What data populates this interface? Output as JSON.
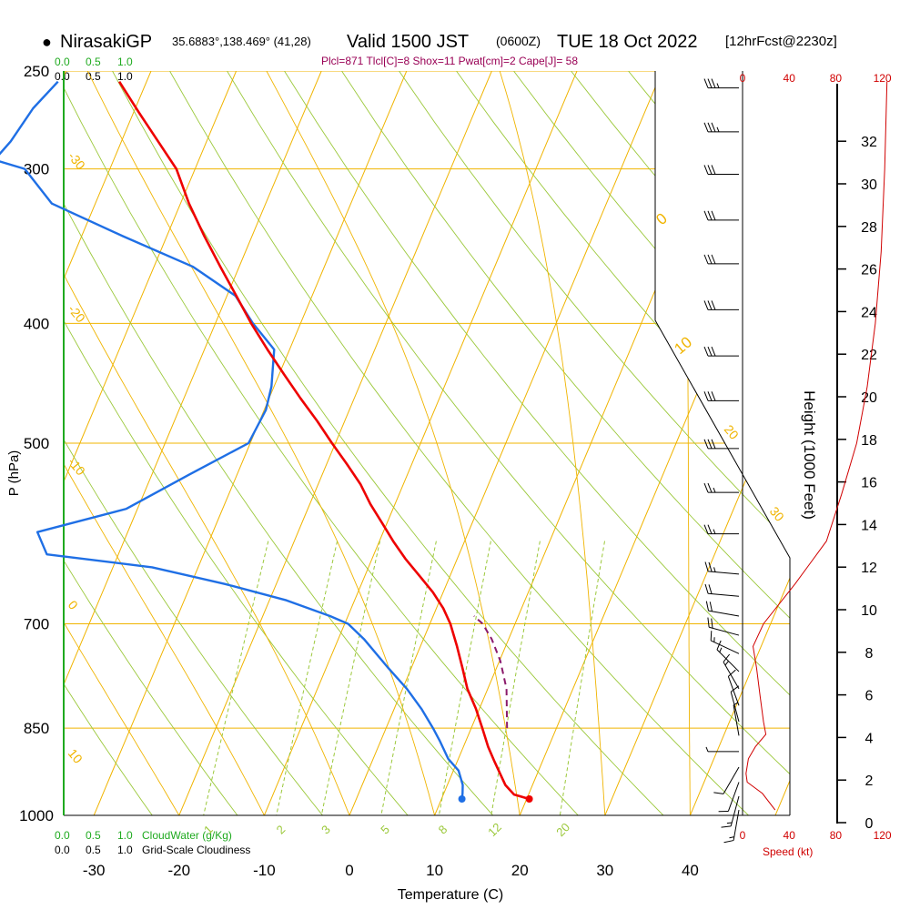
{
  "header": {
    "bullet": "●",
    "station": "NirasakiGP",
    "coords": "35.6883°,138.469° (41,28)",
    "valid": "Valid 1500 JST",
    "utc": "(0600Z)",
    "date": "TUE 18 Oct 2022",
    "forecast": "[12hrFcst@2230z]",
    "indices": "Plcl=871 Tlcl[C]=8 Shox=11 Pwat[cm]=2 Cape[J]= 58"
  },
  "labels": {
    "cloudwater_scale": [
      "0.0",
      "0.5",
      "1.0"
    ],
    "cloudiness_scale": [
      "0.0",
      "0.5",
      "1.0"
    ],
    "cloudwater_title": "CloudWater (g/Kg)",
    "cloudiness_title": "Grid-Scale Cloudiness",
    "speed_title": "Speed (kt)"
  },
  "colors": {
    "temperature": "#ee0000",
    "dewpoint": "#1f6fe5",
    "parcel": "#8b1a6b",
    "isotherm": "#f0b400",
    "isobar": "#f0b400",
    "mixing_ratio": "#9bc83a",
    "dry_adiabat": "#9bc83a",
    "moist_adiabat": "#f0b400",
    "cloudwater": "#1faa1f",
    "wind_speed": "#d00000",
    "indices": "#990055"
  },
  "chart_data": {
    "type": "skewt",
    "title": "NirasakiGP 35.6883°,138.469° (41,28) Valid 1500 JST (0600Z) TUE 18 Oct 2022 [12hrFcst@2230z]",
    "xlabel": "Temperature (C)",
    "ylabel": "P (hPa)",
    "y2label": "Height (1000 Feet)",
    "pressure_ticks": [
      250,
      300,
      400,
      500,
      700,
      850,
      1000
    ],
    "temperature_ticks": [
      -30,
      -20,
      -10,
      0,
      10,
      20,
      30,
      40
    ],
    "height_ticks": [
      0,
      2,
      4,
      6,
      8,
      10,
      12,
      14,
      16,
      18,
      20,
      22,
      24,
      26,
      28,
      30,
      32
    ],
    "speed_ticks": [
      0,
      40,
      80,
      120
    ],
    "skewed_isotherm_labels": [
      -30,
      -20,
      -10,
      0,
      10,
      20,
      30
    ],
    "mixing_ratio_labels": [
      1,
      2,
      3,
      5,
      8,
      12,
      20
    ],
    "indices": {
      "Plcl": 871,
      "Tlcl_C": 8,
      "Shox": 11,
      "Pwat_cm": 2,
      "Cape_J": 58
    },
    "temperature_profile": [
      {
        "p": 970,
        "t": 20.3
      },
      {
        "p": 962,
        "t": 18.3
      },
      {
        "p": 945,
        "t": 16.8
      },
      {
        "p": 905,
        "t": 14.4
      },
      {
        "p": 880,
        "t": 12.9
      },
      {
        "p": 850,
        "t": 11.3
      },
      {
        "p": 820,
        "t": 9.6
      },
      {
        "p": 790,
        "t": 7.6
      },
      {
        "p": 760,
        "t": 6.0
      },
      {
        "p": 730,
        "t": 4.3
      },
      {
        "p": 700,
        "t": 2.4
      },
      {
        "p": 680,
        "t": 0.8
      },
      {
        "p": 660,
        "t": -1.2
      },
      {
        "p": 640,
        "t": -3.6
      },
      {
        "p": 620,
        "t": -6.1
      },
      {
        "p": 600,
        "t": -8.4
      },
      {
        "p": 580,
        "t": -10.6
      },
      {
        "p": 560,
        "t": -12.9
      },
      {
        "p": 540,
        "t": -15.0
      },
      {
        "p": 520,
        "t": -17.6
      },
      {
        "p": 500,
        "t": -20.4
      },
      {
        "p": 480,
        "t": -23.2
      },
      {
        "p": 460,
        "t": -26.3
      },
      {
        "p": 440,
        "t": -29.4
      },
      {
        "p": 420,
        "t": -32.6
      },
      {
        "p": 400,
        "t": -35.8
      },
      {
        "p": 380,
        "t": -38.9
      },
      {
        "p": 360,
        "t": -42.2
      },
      {
        "p": 340,
        "t": -45.6
      },
      {
        "p": 320,
        "t": -49.0
      },
      {
        "p": 300,
        "t": -52.2
      },
      {
        "p": 285,
        "t": -55.7
      },
      {
        "p": 270,
        "t": -59.4
      },
      {
        "p": 255,
        "t": -63.2
      }
    ],
    "dewpoint_profile": [
      {
        "p": 970,
        "t": 12.4
      },
      {
        "p": 960,
        "t": 12.2
      },
      {
        "p": 945,
        "t": 11.8
      },
      {
        "p": 920,
        "t": 10.6
      },
      {
        "p": 900,
        "t": 8.8
      },
      {
        "p": 870,
        "t": 6.9
      },
      {
        "p": 850,
        "t": 5.5
      },
      {
        "p": 820,
        "t": 3.2
      },
      {
        "p": 790,
        "t": 0.5
      },
      {
        "p": 760,
        "t": -2.7
      },
      {
        "p": 720,
        "t": -7.0
      },
      {
        "p": 700,
        "t": -9.6
      },
      {
        "p": 690,
        "t": -12.1
      },
      {
        "p": 670,
        "t": -18.0
      },
      {
        "p": 650,
        "t": -26.0
      },
      {
        "p": 630,
        "t": -35.4
      },
      {
        "p": 615,
        "t": -48.4
      },
      {
        "p": 590,
        "t": -50.6
      },
      {
        "p": 565,
        "t": -41.3
      },
      {
        "p": 530,
        "t": -35.6
      },
      {
        "p": 500,
        "t": -30.2
      },
      {
        "p": 470,
        "t": -29.8
      },
      {
        "p": 450,
        "t": -30.3
      },
      {
        "p": 420,
        "t": -31.8
      },
      {
        "p": 400,
        "t": -35.6
      },
      {
        "p": 380,
        "t": -39.0
      },
      {
        "p": 360,
        "t": -45.4
      },
      {
        "p": 340,
        "t": -55.2
      },
      {
        "p": 320,
        "t": -65.1
      },
      {
        "p": 300,
        "t": -70.0
      },
      {
        "p": 295,
        "t": -74.0
      },
      {
        "p": 285,
        "t": -73.0
      },
      {
        "p": 268,
        "t": -72.0
      },
      {
        "p": 255,
        "t": -70.4
      }
    ],
    "parcel_profile": [
      {
        "p": 850,
        "t": 14.2
      },
      {
        "p": 790,
        "t": 12.2
      },
      {
        "p": 750,
        "t": 10.1
      },
      {
        "p": 720,
        "t": 8.0
      },
      {
        "p": 700,
        "t": 6.2
      },
      {
        "p": 690,
        "t": 4.8
      }
    ],
    "wind_speed_profile": [
      {
        "p": 990,
        "kt": 28
      },
      {
        "p": 960,
        "kt": 17
      },
      {
        "p": 940,
        "kt": 4
      },
      {
        "p": 925,
        "kt": 3
      },
      {
        "p": 900,
        "kt": 5
      },
      {
        "p": 880,
        "kt": 11
      },
      {
        "p": 860,
        "kt": 20
      },
      {
        "p": 840,
        "kt": 18
      },
      {
        "p": 800,
        "kt": 15
      },
      {
        "p": 760,
        "kt": 12
      },
      {
        "p": 730,
        "kt": 9
      },
      {
        "p": 700,
        "kt": 18
      },
      {
        "p": 650,
        "kt": 45
      },
      {
        "p": 600,
        "kt": 72
      },
      {
        "p": 550,
        "kt": 85
      },
      {
        "p": 500,
        "kt": 98
      },
      {
        "p": 450,
        "kt": 107
      },
      {
        "p": 400,
        "kt": 114
      },
      {
        "p": 350,
        "kt": 119
      },
      {
        "p": 300,
        "kt": 122
      },
      {
        "p": 255,
        "kt": 124
      }
    ],
    "wind_barbs": [
      {
        "p": 258,
        "dir": 270,
        "kt": 35
      },
      {
        "p": 280,
        "dir": 270,
        "kt": 35
      },
      {
        "p": 303,
        "dir": 270,
        "kt": 30
      },
      {
        "p": 330,
        "dir": 270,
        "kt": 30
      },
      {
        "p": 358,
        "dir": 270,
        "kt": 30
      },
      {
        "p": 390,
        "dir": 270,
        "kt": 30
      },
      {
        "p": 425,
        "dir": 270,
        "kt": 30
      },
      {
        "p": 462,
        "dir": 270,
        "kt": 30
      },
      {
        "p": 505,
        "dir": 270,
        "kt": 30
      },
      {
        "p": 548,
        "dir": 270,
        "kt": 25
      },
      {
        "p": 592,
        "dir": 270,
        "kt": 25
      },
      {
        "p": 638,
        "dir": 275,
        "kt": 25
      },
      {
        "p": 665,
        "dir": 275,
        "kt": 20
      },
      {
        "p": 690,
        "dir": 280,
        "kt": 20
      },
      {
        "p": 715,
        "dir": 285,
        "kt": 20
      },
      {
        "p": 740,
        "dir": 295,
        "kt": 15
      },
      {
        "p": 765,
        "dir": 315,
        "kt": 15
      },
      {
        "p": 790,
        "dir": 330,
        "kt": 15
      },
      {
        "p": 815,
        "dir": 340,
        "kt": 10
      },
      {
        "p": 840,
        "dir": 345,
        "kt": 10
      },
      {
        "p": 862,
        "dir": 350,
        "kt": 5
      },
      {
        "p": 888,
        "dir": 270,
        "kt": 5
      },
      {
        "p": 914,
        "dir": 210,
        "kt": 10
      },
      {
        "p": 940,
        "dir": 200,
        "kt": 10
      },
      {
        "p": 965,
        "dir": 195,
        "kt": 15
      },
      {
        "p": 990,
        "dir": 190,
        "kt": 15
      }
    ],
    "grid": true
  }
}
